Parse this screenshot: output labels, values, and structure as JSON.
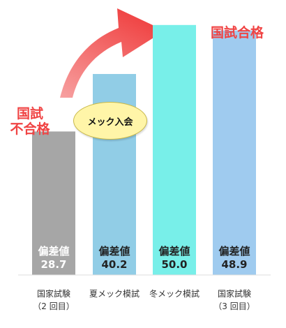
{
  "chart_data": {
    "type": "bar",
    "categories": [
      [
        "国家試験",
        "（2 回目）"
      ],
      [
        "夏メック模試"
      ],
      [
        "冬メック模試"
      ],
      [
        "国家試験",
        "（3 回目）"
      ]
    ],
    "series": [
      {
        "values": [
          28.7,
          40.2,
          50.0,
          48.9
        ],
        "value_labels": [
          "28.7",
          "40.2",
          "50.0",
          "48.9"
        ]
      }
    ],
    "bar_label": "偏差値",
    "bar_colors": [
      "#a6a6a6",
      "#91cde6",
      "#78efe9",
      "#9fcbef"
    ],
    "bar_label_colors": [
      "#ffffff",
      "#222222",
      "#222222",
      "#222222"
    ],
    "ylim": [
      0,
      55
    ],
    "grid": false,
    "annotations": {
      "fail_label": [
        "国試",
        "不合格"
      ],
      "pass_label": "国試合格",
      "bubble_text": "メック入会",
      "callout_color": "#f04444",
      "bubble_color": "#fff5a8",
      "arrow_color": "#f04444"
    }
  }
}
